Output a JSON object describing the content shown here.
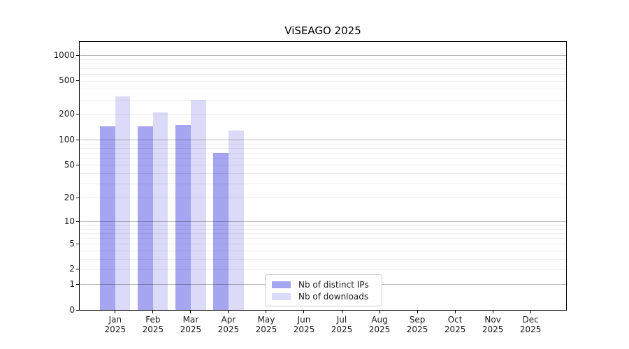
{
  "title": "ViSEAGO 2025",
  "chart_data": {
    "type": "bar",
    "title": "ViSEAGO 2025",
    "categories": [
      "Jan",
      "Feb",
      "Mar",
      "Apr",
      "May",
      "Jun",
      "Jul",
      "Aug",
      "Sep",
      "Oct",
      "Nov",
      "Dec"
    ],
    "year_label": "2025",
    "series": [
      {
        "name": "Nb of distinct IPs",
        "color": "#a5a5f2",
        "values": [
          145,
          145,
          150,
          70,
          null,
          null,
          null,
          null,
          null,
          null,
          null,
          null
        ]
      },
      {
        "name": "Nb of downloads",
        "color": "#dbdbf9",
        "values": [
          330,
          210,
          295,
          130,
          null,
          null,
          null,
          null,
          null,
          null,
          null,
          null
        ]
      }
    ],
    "y_scale": "log1p",
    "y_ticks": [
      1000,
      500,
      200,
      100,
      50,
      20,
      10,
      5,
      2,
      1,
      0
    ],
    "ylim": [
      0,
      1450
    ],
    "grid": true,
    "legend_position": "inside-bottom-center"
  }
}
